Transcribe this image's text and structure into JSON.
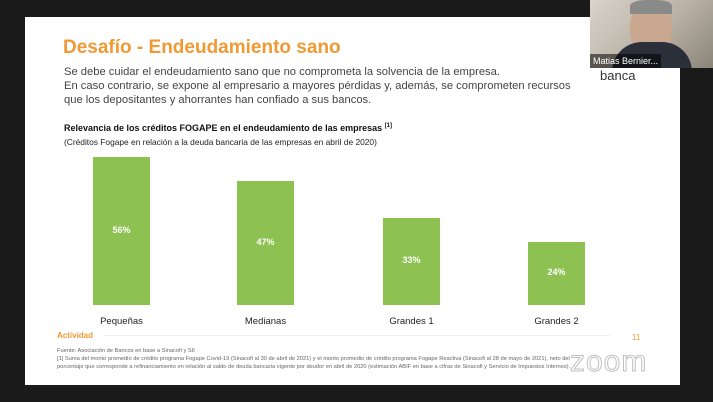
{
  "slide": {
    "title": "Desafío - Endeudamiento sano",
    "body_lines": [
      "Se debe cuidar el endeudamiento sano que no comprometa la solvencia de la empresa.",
      "En caso contrario, se expone al empresario a mayores pérdidas y, además, se comprometen recursos",
      "que los depositantes y ahorrantes han confiado a sus bancos."
    ],
    "footer_label": "Actividad",
    "page_number": "11",
    "source": "Fuente: Asociación de Bancos en base a Sinacofi y SII",
    "footnote_1": "[1] Suma del monto promedio de crédito programa Fogape Covid-19 (Sinacofi al 30 de abril de 2021) y el monto promedio de crédito programa Fogape Reactiva (Sinacofi al 28 de mayo de 2021), neto del",
    "footnote_2": "porcentaje que corresponde a refinanciamiento en relación al saldo de deuda bancaria vigente por deudor en abril de 2020 (estimación ABIF en base a cifras de Sinacofi y Servicio de Impuestos Internos).",
    "logo_text": "banca"
  },
  "video": {
    "participant_name": "Matias Bernier..."
  },
  "watermark": "zoom",
  "chart_data": {
    "type": "bar",
    "title": "Relevancia de los créditos FOGAPE en el endeudamiento de las empresas",
    "title_note": "[1]",
    "subtitle": "(Créditos Fogape en relación a la deuda bancaria de las empresas en abril de 2020)",
    "categories": [
      "Pequeñas",
      "Medianas",
      "Grandes 1",
      "Grandes 2"
    ],
    "values": [
      56,
      47,
      33,
      24
    ],
    "labels": [
      "56%",
      "47%",
      "33%",
      "24%"
    ],
    "ylim": [
      0,
      56
    ],
    "color": "#8dc152"
  }
}
